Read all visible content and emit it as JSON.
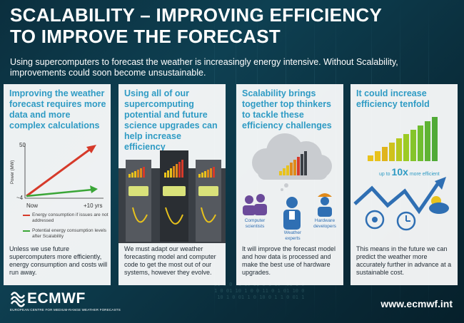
{
  "header": {
    "title_line1": "SCALABILITY – IMPROVING EFFICIENCY",
    "title_line2": "TO IMPROVE THE FORECAST",
    "intro": "Using supercomputers to forecast the weather is increasingly energy intensive. Without Scalability, improvements could soon become unsustainable."
  },
  "cards": [
    {
      "heading": "Improving the weather forecast requires more data and more complex calculations",
      "chart_labels": {
        "y_top": "50",
        "y_bottom": "~4",
        "y_axis": "Power (MW)",
        "x_left": "Now",
        "x_right": "+10 yrs"
      },
      "legend": [
        {
          "label": "Energy consumption if issues are not addressed",
          "color": "#d63a2a"
        },
        {
          "label": "Potential energy consumption levels after Scalability",
          "color": "#3aa637"
        }
      ],
      "body": "Unless we use future supercomputers more efficiently, energy consumption and costs will run away."
    },
    {
      "heading": "Using all of our supercomputing potential and future science upgrades can help increase efficiency",
      "body": "We must adapt our weather forecasting model and computer code to get the most out of our systems, however they evolve."
    },
    {
      "heading": "Scalability brings together top thinkers to tackle these efficiency challenges",
      "people": {
        "computer": "Computer scientists",
        "weather": "Weather experts",
        "hardware": "Hardware developers"
      },
      "body": "It will improve the forecast model and how data is processed and make the best use of hardware upgrades."
    },
    {
      "heading": "It could increase efficiency tenfold",
      "tenfold": {
        "prefix": "up to",
        "big": "10x",
        "suffix": "more efficient"
      },
      "body": "This means in the future we can predict the weather more accurately further in advance at a sustainable cost."
    }
  ],
  "footer": {
    "logo": "ECMWF",
    "logo_sub": "EUROPEAN CENTRE FOR MEDIUM-RANGE WEATHER FORECASTS",
    "url": "www.ecmwf.int"
  },
  "colors": {
    "accent": "#2f9bc4",
    "red": "#d63a2a",
    "green": "#3aa637",
    "background": "#0e4052"
  }
}
